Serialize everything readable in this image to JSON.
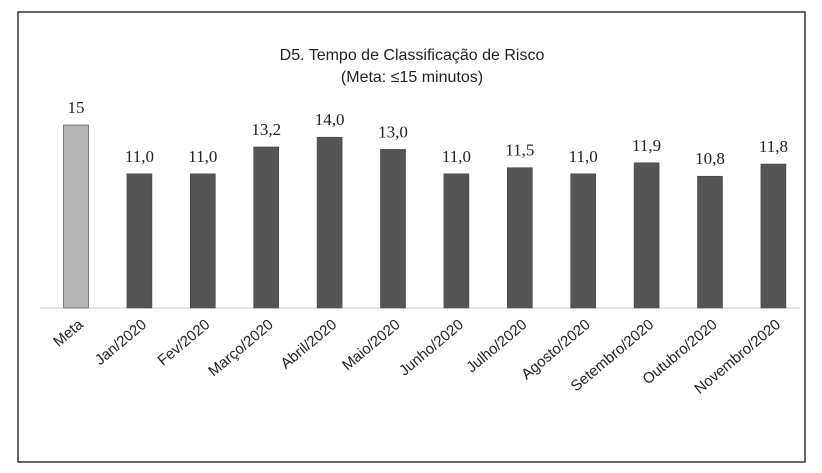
{
  "chart_data": {
    "type": "bar",
    "title": "D5. Tempo de Classificação de Risco",
    "subtitle": "(Meta: ≤15 minutos)",
    "categories": [
      "Meta",
      "Jan/2020",
      "Fev/2020",
      "Março/2020",
      "Abril/2020",
      "Maio/2020",
      "Junho/2020",
      "Julho/2020",
      "Agosto/2020",
      "Setembro/2020",
      "Outubro/2020",
      "Novembro/2020"
    ],
    "values": [
      15,
      11.0,
      11.0,
      13.2,
      14.0,
      13.0,
      11.0,
      11.5,
      11.0,
      11.9,
      10.8,
      11.8
    ],
    "value_labels": [
      "15",
      "11,0",
      "11,0",
      "13,2",
      "14,0",
      "13,0",
      "11,0",
      "11,5",
      "11,0",
      "11,9",
      "10,8",
      "11,8"
    ],
    "colors": [
      "#b5b5b5",
      "#555555",
      "#555555",
      "#555555",
      "#555555",
      "#555555",
      "#555555",
      "#555555",
      "#555555",
      "#555555",
      "#555555",
      "#555555"
    ]
  }
}
